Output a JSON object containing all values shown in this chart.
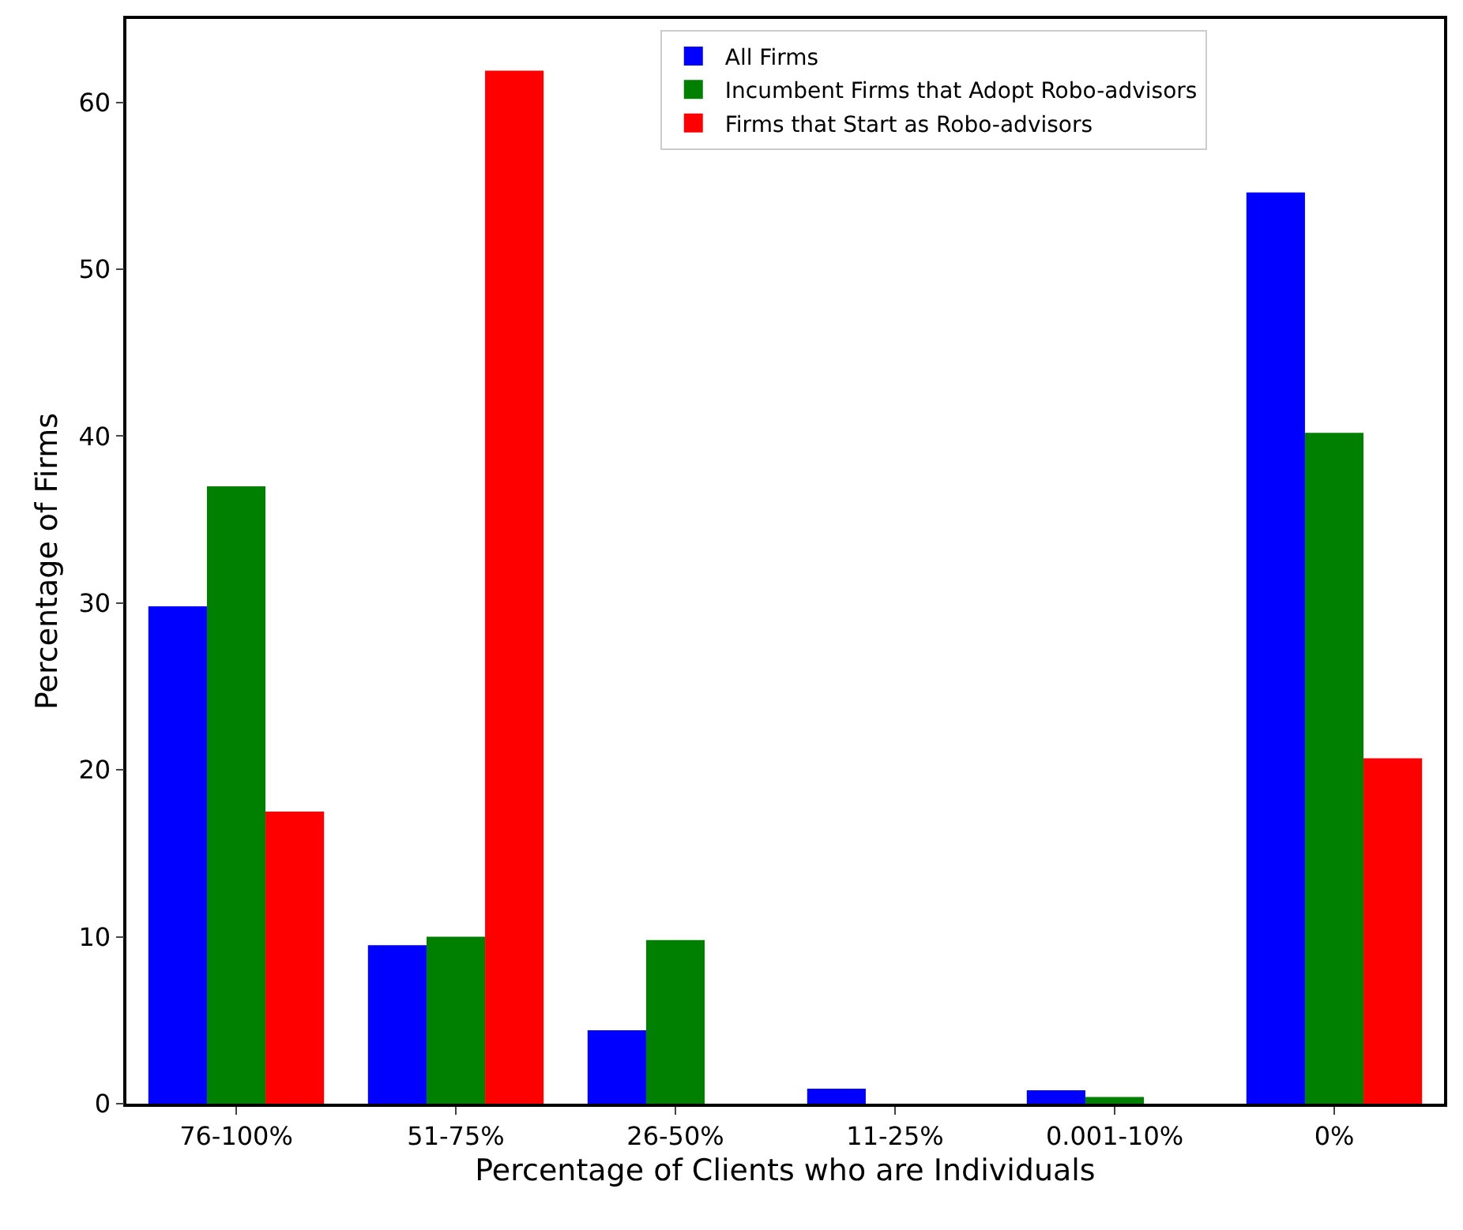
{
  "chart_data": {
    "type": "bar",
    "xlabel": "Percentage of Clients who are Individuals",
    "ylabel": "Percentage of Firms",
    "categories": [
      "76-100%",
      "51-75%",
      "26-50%",
      "11-25%",
      "0.001-10%",
      "0%"
    ],
    "series": [
      {
        "name": "All Firms",
        "color": "#0000ff",
        "values": [
          29.8,
          9.5,
          4.4,
          0.9,
          0.8,
          54.6
        ]
      },
      {
        "name": "Incumbent Firms that Adopt Robo-advisors",
        "color": "#008000",
        "values": [
          37.0,
          10.0,
          9.8,
          0,
          0.4,
          40.2
        ]
      },
      {
        "name": "Firms that Start as Robo-advisors",
        "color": "#ff0000",
        "values": [
          17.5,
          61.9,
          0,
          0,
          0,
          20.7
        ]
      }
    ],
    "ylim": [
      0,
      65
    ],
    "yticks": [
      0,
      10,
      20,
      30,
      40,
      50,
      60
    ],
    "legend": "top right"
  }
}
